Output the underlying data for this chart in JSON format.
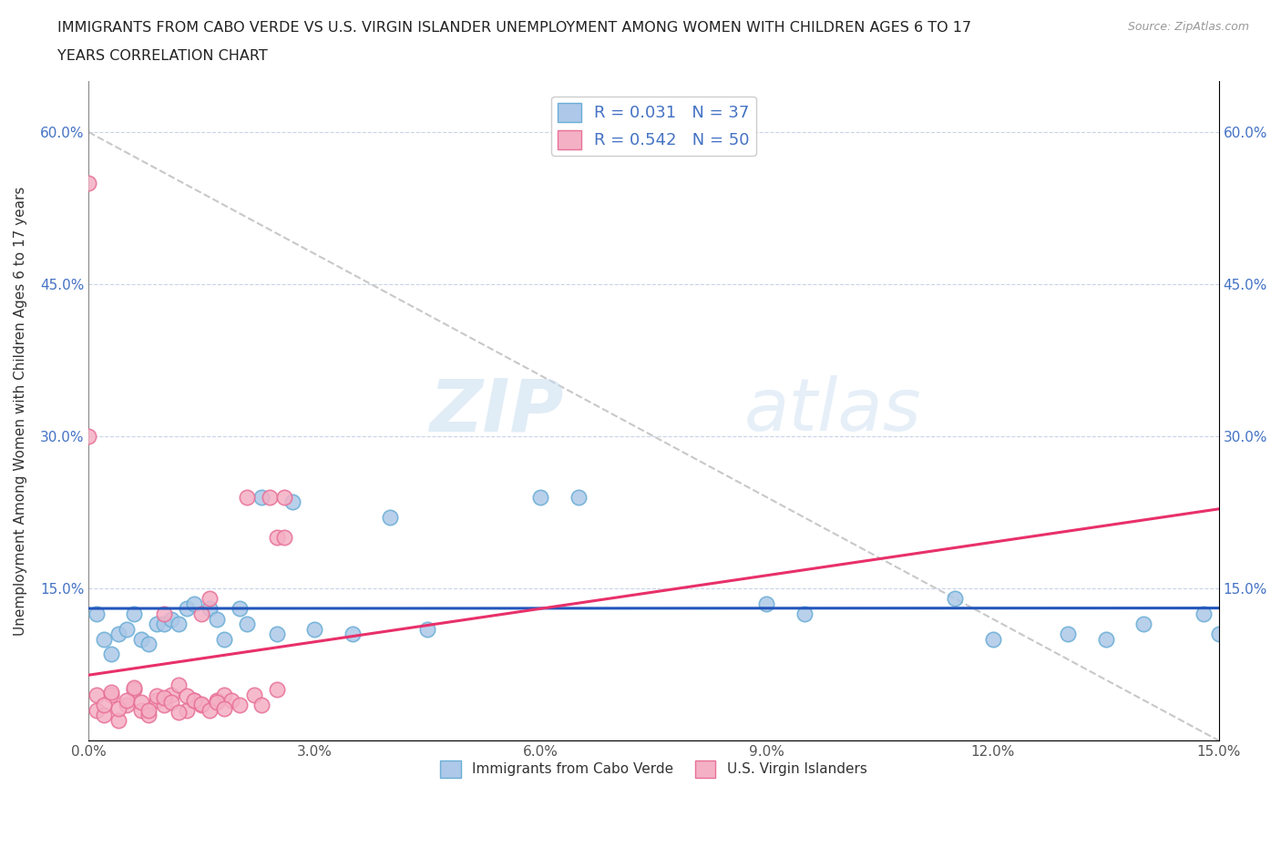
{
  "title_line1": "IMMIGRANTS FROM CABO VERDE VS U.S. VIRGIN ISLANDER UNEMPLOYMENT AMONG WOMEN WITH CHILDREN AGES 6 TO 17",
  "title_line2": "YEARS CORRELATION CHART",
  "source": "Source: ZipAtlas.com",
  "ylabel": "Unemployment Among Women with Children Ages 6 to 17 years",
  "xlim": [
    0.0,
    0.15
  ],
  "ylim": [
    0.0,
    0.65
  ],
  "xticks": [
    0.0,
    0.03,
    0.06,
    0.09,
    0.12,
    0.15
  ],
  "yticks": [
    0.0,
    0.15,
    0.3,
    0.45,
    0.6
  ],
  "xticklabels": [
    "0.0%",
    "3.0%",
    "6.0%",
    "9.0%",
    "12.0%",
    "15.0%"
  ],
  "yticklabels": [
    "",
    "15.0%",
    "30.0%",
    "45.0%",
    "60.0%"
  ],
  "cabo_verde_color": "#adc8e8",
  "cabo_verde_edge": "#6aaed6",
  "virgin_islander_color": "#f4b0c4",
  "virgin_islander_edge": "#e87098",
  "trend_cabo_color": "#2255bb",
  "trend_virgin_color": "#e8306a",
  "trend_dashed_color": "#c8c8c8",
  "R_cabo": 0.031,
  "N_cabo": 37,
  "R_virgin": 0.542,
  "N_virgin": 50,
  "watermark_zip": "ZIP",
  "watermark_atlas": "atlas",
  "cabo_verde_x": [
    0.001,
    0.002,
    0.003,
    0.004,
    0.005,
    0.006,
    0.007,
    0.008,
    0.009,
    0.01,
    0.011,
    0.012,
    0.013,
    0.014,
    0.016,
    0.017,
    0.018,
    0.02,
    0.021,
    0.023,
    0.025,
    0.027,
    0.03,
    0.035,
    0.04,
    0.045,
    0.06,
    0.065,
    0.09,
    0.095,
    0.115,
    0.12,
    0.13,
    0.135,
    0.14,
    0.148,
    0.15
  ],
  "cabo_verde_y": [
    0.125,
    0.1,
    0.085,
    0.105,
    0.11,
    0.125,
    0.1,
    0.095,
    0.115,
    0.115,
    0.12,
    0.115,
    0.13,
    0.135,
    0.13,
    0.12,
    0.1,
    0.13,
    0.115,
    0.24,
    0.105,
    0.235,
    0.11,
    0.105,
    0.22,
    0.11,
    0.24,
    0.24,
    0.135,
    0.125,
    0.14,
    0.1,
    0.105,
    0.1,
    0.115,
    0.125,
    0.105
  ],
  "virgin_x": [
    0.001,
    0.002,
    0.003,
    0.004,
    0.005,
    0.006,
    0.007,
    0.008,
    0.009,
    0.01,
    0.01,
    0.011,
    0.012,
    0.013,
    0.014,
    0.015,
    0.015,
    0.016,
    0.017,
    0.018,
    0.019,
    0.02,
    0.021,
    0.022,
    0.023,
    0.024,
    0.025,
    0.025,
    0.026,
    0.026,
    0.0,
    0.0,
    0.001,
    0.002,
    0.003,
    0.004,
    0.005,
    0.006,
    0.007,
    0.008,
    0.009,
    0.01,
    0.011,
    0.012,
    0.013,
    0.014,
    0.015,
    0.016,
    0.017,
    0.018
  ],
  "virgin_y": [
    0.03,
    0.025,
    0.045,
    0.02,
    0.035,
    0.05,
    0.03,
    0.025,
    0.04,
    0.035,
    0.125,
    0.045,
    0.055,
    0.03,
    0.04,
    0.035,
    0.125,
    0.14,
    0.04,
    0.045,
    0.04,
    0.035,
    0.24,
    0.045,
    0.035,
    0.24,
    0.05,
    0.2,
    0.24,
    0.2,
    0.55,
    0.3,
    0.045,
    0.035,
    0.048,
    0.032,
    0.04,
    0.052,
    0.038,
    0.03,
    0.044,
    0.042,
    0.038,
    0.028,
    0.044,
    0.04,
    0.036,
    0.03,
    0.038,
    0.032
  ]
}
